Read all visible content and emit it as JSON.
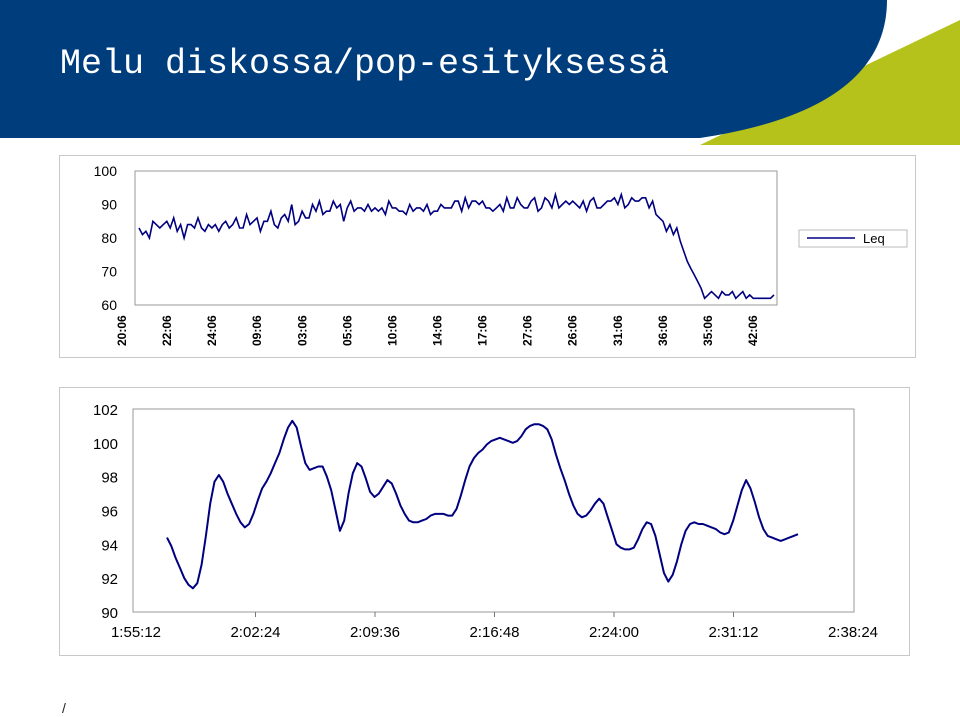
{
  "title": "Melu diskossa/pop-esityksessä",
  "footer": "/",
  "colors": {
    "header_bg": "#003d7c",
    "accent": "#b5c21b",
    "line": "#000080"
  },
  "chart_data": [
    {
      "type": "line",
      "title": "",
      "ylim": [
        60,
        100
      ],
      "yticks": [
        60,
        70,
        80,
        90,
        100
      ],
      "xlabels": [
        "20:06",
        "22:06",
        "24:06",
        "09:06",
        "03:06",
        "05:06",
        "10:06",
        "14:06",
        "17:06",
        "27:06",
        "26:06",
        "31:06",
        "36:06",
        "35:06",
        "42:06"
      ],
      "legend": {
        "entries": [
          "Leq"
        ],
        "position": "right"
      },
      "grid": false,
      "series": [
        {
          "name": "Leq",
          "values": [
            83,
            81,
            82,
            80,
            85,
            84,
            83,
            84,
            85,
            83,
            86,
            82,
            84,
            80,
            84,
            84,
            83,
            86,
            83,
            82,
            84,
            83,
            84,
            82,
            84,
            85,
            83,
            84,
            86,
            83,
            83,
            87,
            84,
            85,
            86,
            82,
            85,
            85,
            88,
            84,
            83,
            86,
            87,
            85,
            90,
            84,
            85,
            88,
            86,
            86,
            90,
            88,
            91,
            87,
            88,
            88,
            91,
            89,
            90,
            85,
            89,
            91,
            88,
            89,
            89,
            88,
            90,
            88,
            89,
            88,
            89,
            87,
            91,
            89,
            89,
            88,
            88,
            87,
            90,
            88,
            89,
            89,
            88,
            90,
            87,
            88,
            88,
            90,
            89,
            89,
            89,
            91,
            91,
            88,
            92,
            89,
            91,
            91,
            90,
            91,
            89,
            89,
            88,
            89,
            90,
            88,
            92,
            89,
            89,
            92,
            90,
            89,
            89,
            91,
            92,
            88,
            89,
            92,
            91,
            89,
            93,
            89,
            90,
            91,
            90,
            91,
            90,
            89,
            91,
            88,
            91,
            92,
            89,
            89,
            90,
            91,
            91,
            92,
            90,
            93,
            89,
            90,
            92,
            91,
            91,
            92,
            92,
            89,
            91,
            87,
            86,
            85,
            82,
            84,
            81,
            83,
            79,
            76,
            73,
            71,
            69,
            67,
            65,
            62,
            63,
            64,
            63,
            62,
            64,
            63,
            63,
            64,
            62,
            63,
            64,
            62,
            63,
            62,
            62,
            62,
            62,
            62,
            62,
            63
          ]
        }
      ]
    },
    {
      "type": "line",
      "title": "",
      "ylim": [
        90,
        102
      ],
      "yticks": [
        90,
        92,
        94,
        96,
        98,
        100,
        102
      ],
      "xlabels": [
        "1:55:12",
        "2:02:24",
        "2:09:36",
        "2:16:48",
        "2:24:00",
        "2:31:12",
        "2:38:24"
      ],
      "grid": false,
      "series": [
        {
          "values": [
            94.4,
            93.9,
            93.2,
            92.6,
            92.0,
            91.6,
            91.4,
            91.7,
            92.8,
            94.5,
            96.4,
            97.7,
            98.1,
            97.7,
            97.0,
            96.4,
            95.8,
            95.3,
            95.0,
            95.2,
            95.8,
            96.6,
            97.3,
            97.7,
            98.2,
            98.8,
            99.4,
            100.2,
            100.9,
            101.3,
            100.9,
            99.8,
            98.8,
            98.4,
            98.5,
            98.6,
            98.6,
            98.0,
            97.2,
            96.0,
            94.8,
            95.4,
            97.0,
            98.2,
            98.8,
            98.6,
            97.9,
            97.1,
            96.8,
            97.0,
            97.4,
            97.8,
            97.6,
            97.0,
            96.3,
            95.8,
            95.4,
            95.3,
            95.3,
            95.4,
            95.5,
            95.7,
            95.8,
            95.8,
            95.8,
            95.7,
            95.7,
            96.1,
            96.9,
            97.8,
            98.6,
            99.1,
            99.4,
            99.6,
            99.9,
            100.1,
            100.2,
            100.3,
            100.2,
            100.1,
            100.0,
            100.1,
            100.4,
            100.8,
            101.0,
            101.1,
            101.1,
            101.0,
            100.8,
            100.2,
            99.3,
            98.5,
            97.8,
            97.0,
            96.3,
            95.8,
            95.6,
            95.7,
            96.0,
            96.4,
            96.7,
            96.4,
            95.6,
            94.8,
            94.0,
            93.8,
            93.7,
            93.7,
            93.8,
            94.3,
            94.9,
            95.3,
            95.2,
            94.5,
            93.4,
            92.3,
            91.8,
            92.2,
            93.0,
            94.0,
            94.8,
            95.2,
            95.3,
            95.2,
            95.2,
            95.1,
            95.0,
            94.9,
            94.7,
            94.6,
            94.7,
            95.4,
            96.3,
            97.2,
            97.8,
            97.3,
            96.5,
            95.6,
            94.9,
            94.5,
            94.4,
            94.3,
            94.2,
            94.3,
            94.4,
            94.5,
            94.6
          ]
        }
      ]
    }
  ]
}
